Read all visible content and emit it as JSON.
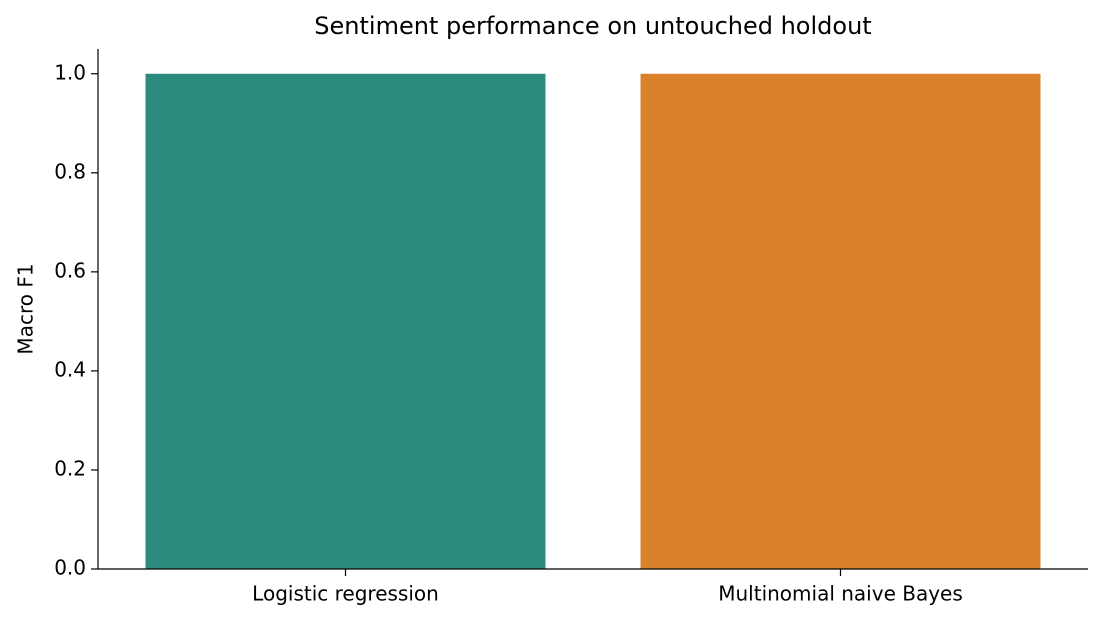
{
  "chart_data": {
    "type": "bar",
    "title": "Sentiment performance on untouched holdout",
    "y_label": "Macro F1",
    "categories": [
      "Logistic regression",
      "Multinomial naive Bayes"
    ],
    "values": [
      1.0,
      1.0
    ],
    "colors": [
      "#2b8b7d",
      "#d9822b"
    ],
    "ylim": [
      0,
      1.05
    ],
    "yticks": [
      {
        "value": 0,
        "label": "0.0"
      },
      0.2,
      0.4,
      0.6,
      0.8,
      {
        "value": 1,
        "label": "1.0"
      }
    ],
    "grid": false
  }
}
